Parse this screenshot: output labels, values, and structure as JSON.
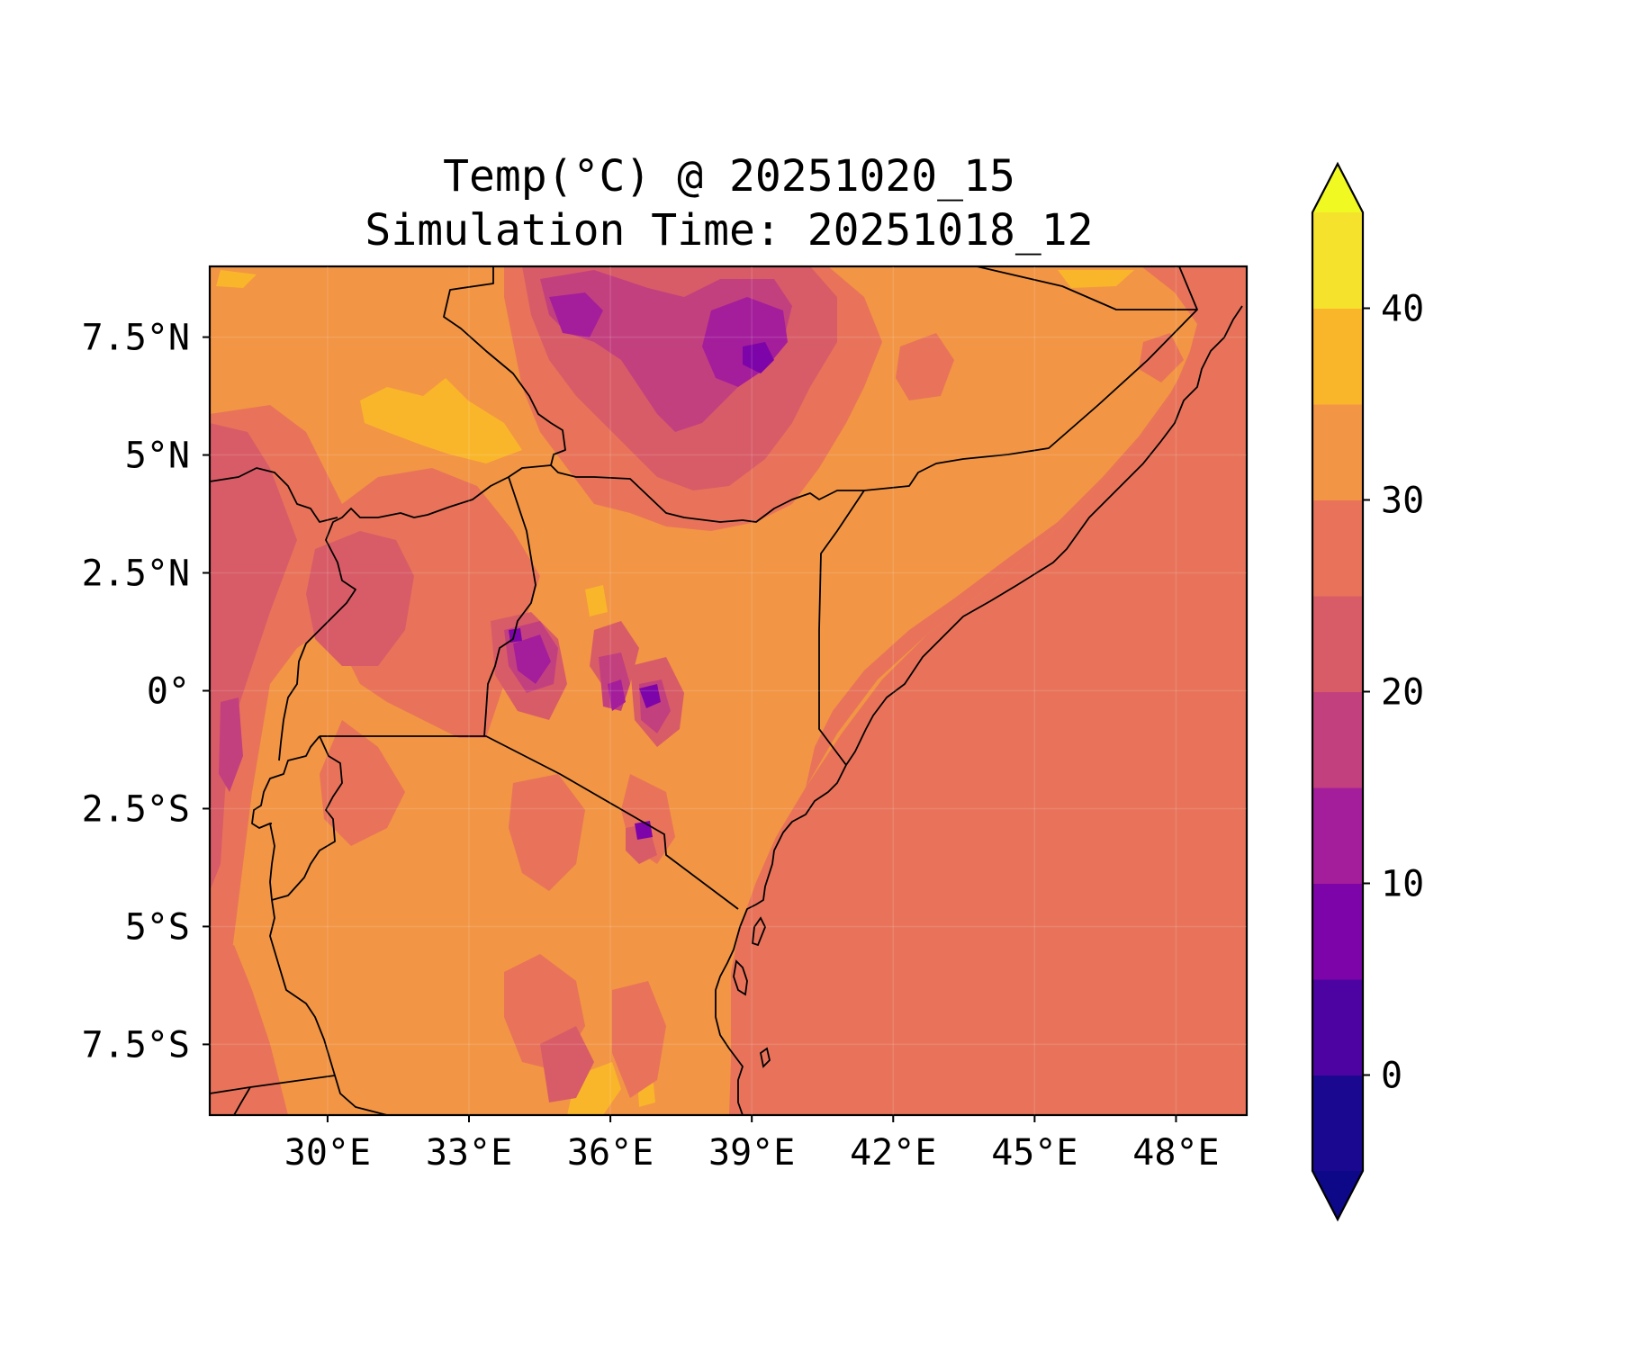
{
  "title_line1": "Temp(°C) @ 20251020_15",
  "title_line2": "Simulation Time: 20251018_12",
  "map": {
    "variable": "temperature",
    "unit": "°C",
    "region": "East Africa",
    "lon_range": [
      27.5,
      49.5
    ],
    "lat_range": [
      -9,
      9
    ],
    "x_ticks": [
      "30°E",
      "33°E",
      "36°E",
      "39°E",
      "42°E",
      "45°E",
      "48°E"
    ],
    "y_ticks": [
      "7.5°N",
      "5°N",
      "2.5°N",
      "0°",
      "2.5°S",
      "5°S",
      "7.5°S"
    ],
    "features": [
      "country borders",
      "coastline",
      "Indian Ocean"
    ],
    "ocean_color": "#e8735a",
    "land_base_color": "#f29545"
  },
  "colorbar": {
    "orientation": "vertical",
    "extend": "both",
    "levels": [
      -5,
      0,
      5,
      10,
      15,
      20,
      25,
      30,
      35,
      40,
      45
    ],
    "tick_labels": [
      "0",
      "10",
      "20",
      "30",
      "40"
    ],
    "colors": [
      "#1b0891",
      "#4d03a2",
      "#7d04a8",
      "#a41e9b",
      "#c3407f",
      "#d85c67",
      "#e8735a",
      "#f29545",
      "#f9b62b",
      "#f5e22c"
    ],
    "under_color": "#0d0887",
    "over_color": "#f0f921"
  }
}
